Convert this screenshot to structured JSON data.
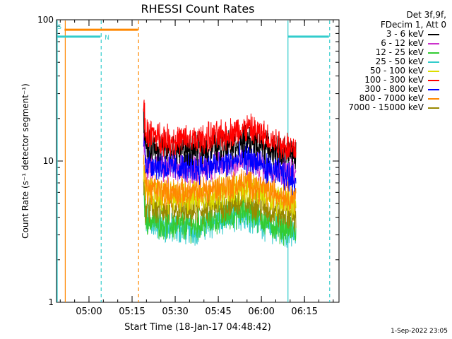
{
  "chart_data": {
    "type": "line",
    "title": "RHESSI Count Rates",
    "xlabel": "Start Time (18-Jan-17 04:48:42)",
    "ylabel": "Count Rate (s⁻¹ detector segment⁻¹)",
    "yscale": "log",
    "ylim": [
      1,
      100
    ],
    "y_ticks": [
      "1",
      "10",
      "100"
    ],
    "xlim": [
      "04:48:42",
      "06:27:00"
    ],
    "x_ticks": [
      "05:00",
      "05:15",
      "05:30",
      "05:45",
      "06:00",
      "06:15"
    ],
    "legend_header": [
      "Det 3f,9f,",
      "FDecim 1, Att 0"
    ],
    "legend_position": "right",
    "series": [
      {
        "name": "3 - 6 keV",
        "color": "#000000",
        "approx_level": [
          13,
          12,
          12,
          13,
          14,
          12,
          11
        ]
      },
      {
        "name": "6 - 12 keV",
        "color": "#cc33cc",
        "approx_level": [
          9.5,
          9,
          9,
          9.5,
          10,
          9,
          8
        ]
      },
      {
        "name": "12 - 25 keV",
        "color": "#33cc33",
        "approx_level": [
          4,
          3.5,
          3.5,
          4,
          4.5,
          3.5,
          3.2
        ]
      },
      {
        "name": "25 - 50 keV",
        "color": "#33cccc",
        "approx_level": [
          3.8,
          3.3,
          3.3,
          3.8,
          4.2,
          3.3,
          3
        ]
      },
      {
        "name": "50 - 100 keV",
        "color": "#dddd00",
        "approx_level": [
          6,
          5.5,
          5.5,
          6,
          6.5,
          5.5,
          5
        ]
      },
      {
        "name": "100 - 300 keV",
        "color": "#ff0000",
        "approx_level": [
          16,
          14,
          14,
          15,
          17,
          14,
          12
        ]
      },
      {
        "name": "300 - 800 keV",
        "color": "#0000ff",
        "approx_level": [
          10,
          9,
          9,
          9.5,
          10.5,
          8.5,
          7.5
        ]
      },
      {
        "name": "800 - 7000 keV",
        "color": "#ff8800",
        "approx_level": [
          6.5,
          6,
          6,
          6.5,
          7,
          6,
          5.5
        ]
      },
      {
        "name": "7000 - 15000 keV",
        "color": "#998800",
        "approx_level": [
          4.8,
          4.4,
          4.4,
          4.8,
          5.2,
          4.4,
          4
        ]
      }
    ],
    "data_time_span": [
      "05:19:00",
      "06:12:00"
    ],
    "data_time_samples": [
      "05:19",
      "05:28",
      "05:37",
      "05:46",
      "05:55",
      "06:04",
      "06:12"
    ],
    "attenuator_bars": {
      "label_s": "S",
      "label_n": "N",
      "orange_level": 85,
      "cyan_level": 76
    },
    "markers": [
      {
        "time": "04:48:42",
        "color": "#33cccc",
        "style": "solid"
      },
      {
        "time": "04:51:30",
        "color": "#ff8800",
        "style": "solid"
      },
      {
        "time": "05:04:00",
        "color": "#33cccc",
        "style": "dashed"
      },
      {
        "time": "05:17:00",
        "color": "#ff8800",
        "style": "dashed"
      },
      {
        "time": "06:09:00",
        "color": "#33cccc",
        "style": "solid"
      },
      {
        "time": "06:23:30",
        "color": "#33cccc",
        "style": "dashed"
      }
    ],
    "orange_bar_span": [
      "04:51:30",
      "05:17:00"
    ],
    "cyan_bar_spans": [
      [
        "04:48:42",
        "05:04:00"
      ],
      [
        "06:09:00",
        "06:23:30"
      ]
    ]
  },
  "footer": {
    "timestamp": "1-Sep-2022 23:05"
  }
}
